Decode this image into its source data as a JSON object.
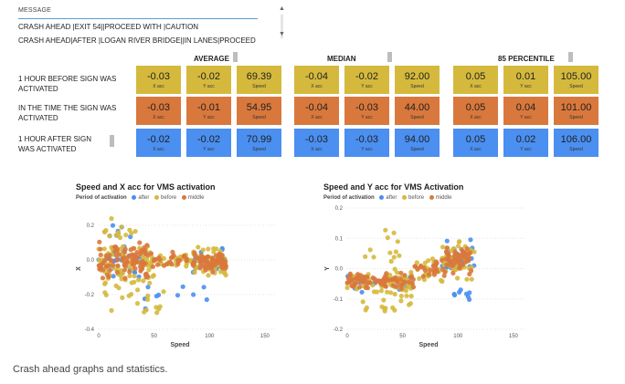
{
  "message_list": {
    "header": "MESSAGE",
    "items": [
      "CRASH AHEAD |EXIT 54||PROCEED WITH |CAUTION",
      "CRASH AHEAD|AFTER |LOGAN RIVER BRIDGE||IN LANES|PROCEED"
    ]
  },
  "stats": {
    "sections": [
      "AVERAGE",
      "MEDIAN",
      "85  PERCENTILE"
    ],
    "row_labels": [
      "1 HOUR BEFORE SIGN WAS ACTIVATED",
      "IN THE TIME THE SIGN WAS ACTIVATED",
      "1 HOUR AFTER SIGN WAS ACTIVATED"
    ],
    "column_labels": [
      "X acc",
      "Y acc",
      "Speed"
    ],
    "values": {
      "average": [
        [
          "-0.03",
          "-0.02",
          "69.39"
        ],
        [
          "-0.03",
          "-0.01",
          "54.95"
        ],
        [
          "-0.02",
          "-0.02",
          "70.99"
        ]
      ],
      "median": [
        [
          "-0.04",
          "-0.02",
          "92.00"
        ],
        [
          "-0.04",
          "-0.03",
          "44.00"
        ],
        [
          "-0.03",
          "-0.03",
          "94.00"
        ]
      ],
      "percentile85": [
        [
          "0.05",
          "0.01",
          "105.00"
        ],
        [
          "0.05",
          "0.04",
          "101.00"
        ],
        [
          "0.05",
          "0.02",
          "106.00"
        ]
      ]
    },
    "row_colors": [
      "#d5b93d",
      "#d9783c",
      "#4b8ff0"
    ]
  },
  "caption": "Crash ahead graphs and statistics.",
  "chart_data": [
    {
      "type": "scatter",
      "title": "Speed and X acc for VMS activation",
      "legend_title": "Period of activation",
      "xlabel": "Speed",
      "ylabel": "X",
      "xlim": [
        0,
        160
      ],
      "ylim": [
        -0.4,
        0.3
      ],
      "xticks": [
        0,
        50,
        100,
        150
      ],
      "yticks": [
        0.2,
        0.0,
        -0.2,
        -0.4
      ],
      "ytick_labels": [
        "0.2",
        "0.0",
        "-0.2",
        "-0.4"
      ],
      "legend_position": "top-left",
      "series": [
        {
          "name": "after",
          "color": "#4b8ff0",
          "clusters": [
            {
              "x": [
                0,
                40
              ],
              "y": [
                -0.15,
                0.1
              ],
              "n": 25
            },
            {
              "x": [
                85,
                115
              ],
              "y": [
                -0.1,
                0.08
              ],
              "n": 30
            },
            {
              "x": [
                5,
                30
              ],
              "y": [
                0.1,
                0.2
              ],
              "n": 6
            },
            {
              "x": [
                40,
                100
              ],
              "y": [
                -0.3,
                -0.12
              ],
              "n": 10
            }
          ]
        },
        {
          "name": "before",
          "color": "#d5b93d",
          "clusters": [
            {
              "x": [
                0,
                50
              ],
              "y": [
                -0.15,
                0.1
              ],
              "n": 80
            },
            {
              "x": [
                50,
                85
              ],
              "y": [
                -0.05,
                0.05
              ],
              "n": 25
            },
            {
              "x": [
                85,
                115
              ],
              "y": [
                -0.1,
                0.08
              ],
              "n": 60
            },
            {
              "x": [
                5,
                60
              ],
              "y": [
                -0.35,
                -0.15
              ],
              "n": 18
            },
            {
              "x": [
                5,
                40
              ],
              "y": [
                0.1,
                0.25
              ],
              "n": 14
            }
          ]
        },
        {
          "name": "middle",
          "color": "#d9783c",
          "clusters": [
            {
              "x": [
                0,
                45
              ],
              "y": [
                -0.12,
                0.12
              ],
              "n": 90
            },
            {
              "x": [
                45,
                85
              ],
              "y": [
                -0.05,
                0.05
              ],
              "n": 25
            },
            {
              "x": [
                85,
                115
              ],
              "y": [
                -0.08,
                0.06
              ],
              "n": 70
            }
          ]
        }
      ]
    },
    {
      "type": "scatter",
      "title": "Speed and Y acc for VMS Activation",
      "legend_title": "Period of activation",
      "xlabel": "Speed",
      "ylabel": "Y",
      "xlim": [
        0,
        160
      ],
      "ylim": [
        -0.2,
        0.2
      ],
      "xticks": [
        0,
        50,
        100,
        150
      ],
      "yticks": [
        0.2,
        0.1,
        0.0,
        -0.1,
        -0.2
      ],
      "ytick_labels": [
        "0.2",
        "0.1",
        "0.0",
        "-0.1",
        "-0.2"
      ],
      "legend_position": "top-left",
      "series": [
        {
          "name": "after",
          "color": "#4b8ff0",
          "clusters": [
            {
              "x": [
                0,
                60
              ],
              "y": [
                -0.08,
                -0.02
              ],
              "n": 20
            },
            {
              "x": [
                85,
                115
              ],
              "y": [
                -0.02,
                0.1
              ],
              "n": 30
            },
            {
              "x": [
                90,
                115
              ],
              "y": [
                -0.12,
                -0.04
              ],
              "n": 8
            }
          ]
        },
        {
          "name": "before",
          "color": "#d5b93d",
          "clusters": [
            {
              "x": [
                0,
                60
              ],
              "y": [
                -0.1,
                0.0
              ],
              "n": 70
            },
            {
              "x": [
                60,
                90
              ],
              "y": [
                -0.05,
                0.04
              ],
              "n": 25
            },
            {
              "x": [
                85,
                115
              ],
              "y": [
                -0.05,
                0.1
              ],
              "n": 45
            },
            {
              "x": [
                10,
                50
              ],
              "y": [
                0.02,
                0.14
              ],
              "n": 12
            },
            {
              "x": [
                10,
                60
              ],
              "y": [
                -0.15,
                -0.08
              ],
              "n": 14
            }
          ]
        },
        {
          "name": "middle",
          "color": "#d9783c",
          "clusters": [
            {
              "x": [
                0,
                60
              ],
              "y": [
                -0.07,
                -0.01
              ],
              "n": 80
            },
            {
              "x": [
                60,
                90
              ],
              "y": [
                -0.04,
                0.03
              ],
              "n": 25
            },
            {
              "x": [
                88,
                112
              ],
              "y": [
                -0.02,
                0.08
              ],
              "n": 55
            }
          ]
        }
      ]
    }
  ]
}
